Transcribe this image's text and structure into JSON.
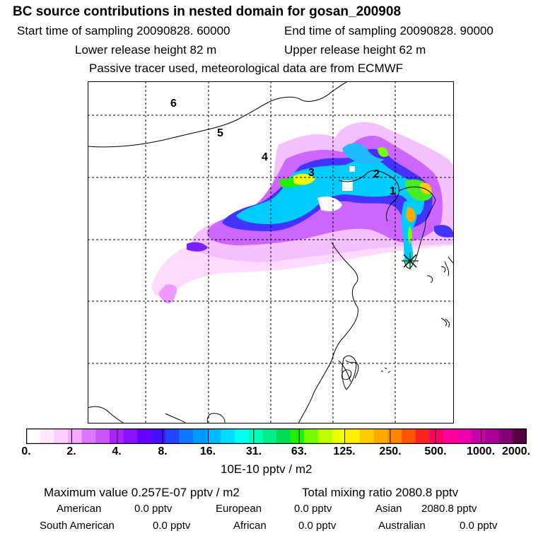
{
  "header": {
    "title": "BC  source contributions in nested domain for gosan_200908",
    "start_label": "Start time of sampling 20090828. 60000",
    "end_label": "End time of sampling 20090828. 90000",
    "lower_label": "Lower release height   82 m",
    "upper_label": "Upper release height   62 m",
    "tracer_label": "Passive tracer used, meteorological data are from ECMWF"
  },
  "map": {
    "region_labels": [
      "6",
      "5",
      "4",
      "3",
      "2",
      "1"
    ],
    "receptor_icon": "star-marker-icon"
  },
  "colorbar": {
    "colors": [
      "#ffffff",
      "#ffe8ff",
      "#ffccff",
      "#f4aaff",
      "#dd77ff",
      "#cc55ff",
      "#aa22ff",
      "#8811ff",
      "#6600ff",
      "#4411ff",
      "#2244ff",
      "#1177ff",
      "#0099ff",
      "#00bbff",
      "#00ddff",
      "#00ffee",
      "#00ffbb",
      "#00ee88",
      "#00dd55",
      "#22ee00",
      "#77ff00",
      "#bbff00",
      "#eeff00",
      "#ffee00",
      "#ffcc00",
      "#ffaa00",
      "#ff8800",
      "#ff5500",
      "#ff2222",
      "#ff0066",
      "#ff0099",
      "#ee00aa",
      "#cc00aa",
      "#aa0099",
      "#880077",
      "#550044"
    ],
    "tick_labels": [
      "0.",
      "2.",
      "4.",
      "8.",
      "16.",
      "31.",
      "63.",
      "125.",
      "250.",
      "500.",
      "1000.",
      "2000."
    ],
    "units": "10E-10 pptv / m2"
  },
  "summary": {
    "maximum": "Maximum value  0.257E-07 pptv / m2",
    "total": "Total mixing ratio     2080.8 pptv",
    "sources": [
      {
        "name": "American",
        "value": "0.0 pptv"
      },
      {
        "name": "European",
        "value": "0.0 pptv"
      },
      {
        "name": "Asian",
        "value": "2080.8 pptv"
      },
      {
        "name": "South American",
        "value": "0.0 pptv"
      },
      {
        "name": "African",
        "value": "0.0 pptv"
      },
      {
        "name": "Australian",
        "value": "0.0 pptv"
      }
    ]
  }
}
